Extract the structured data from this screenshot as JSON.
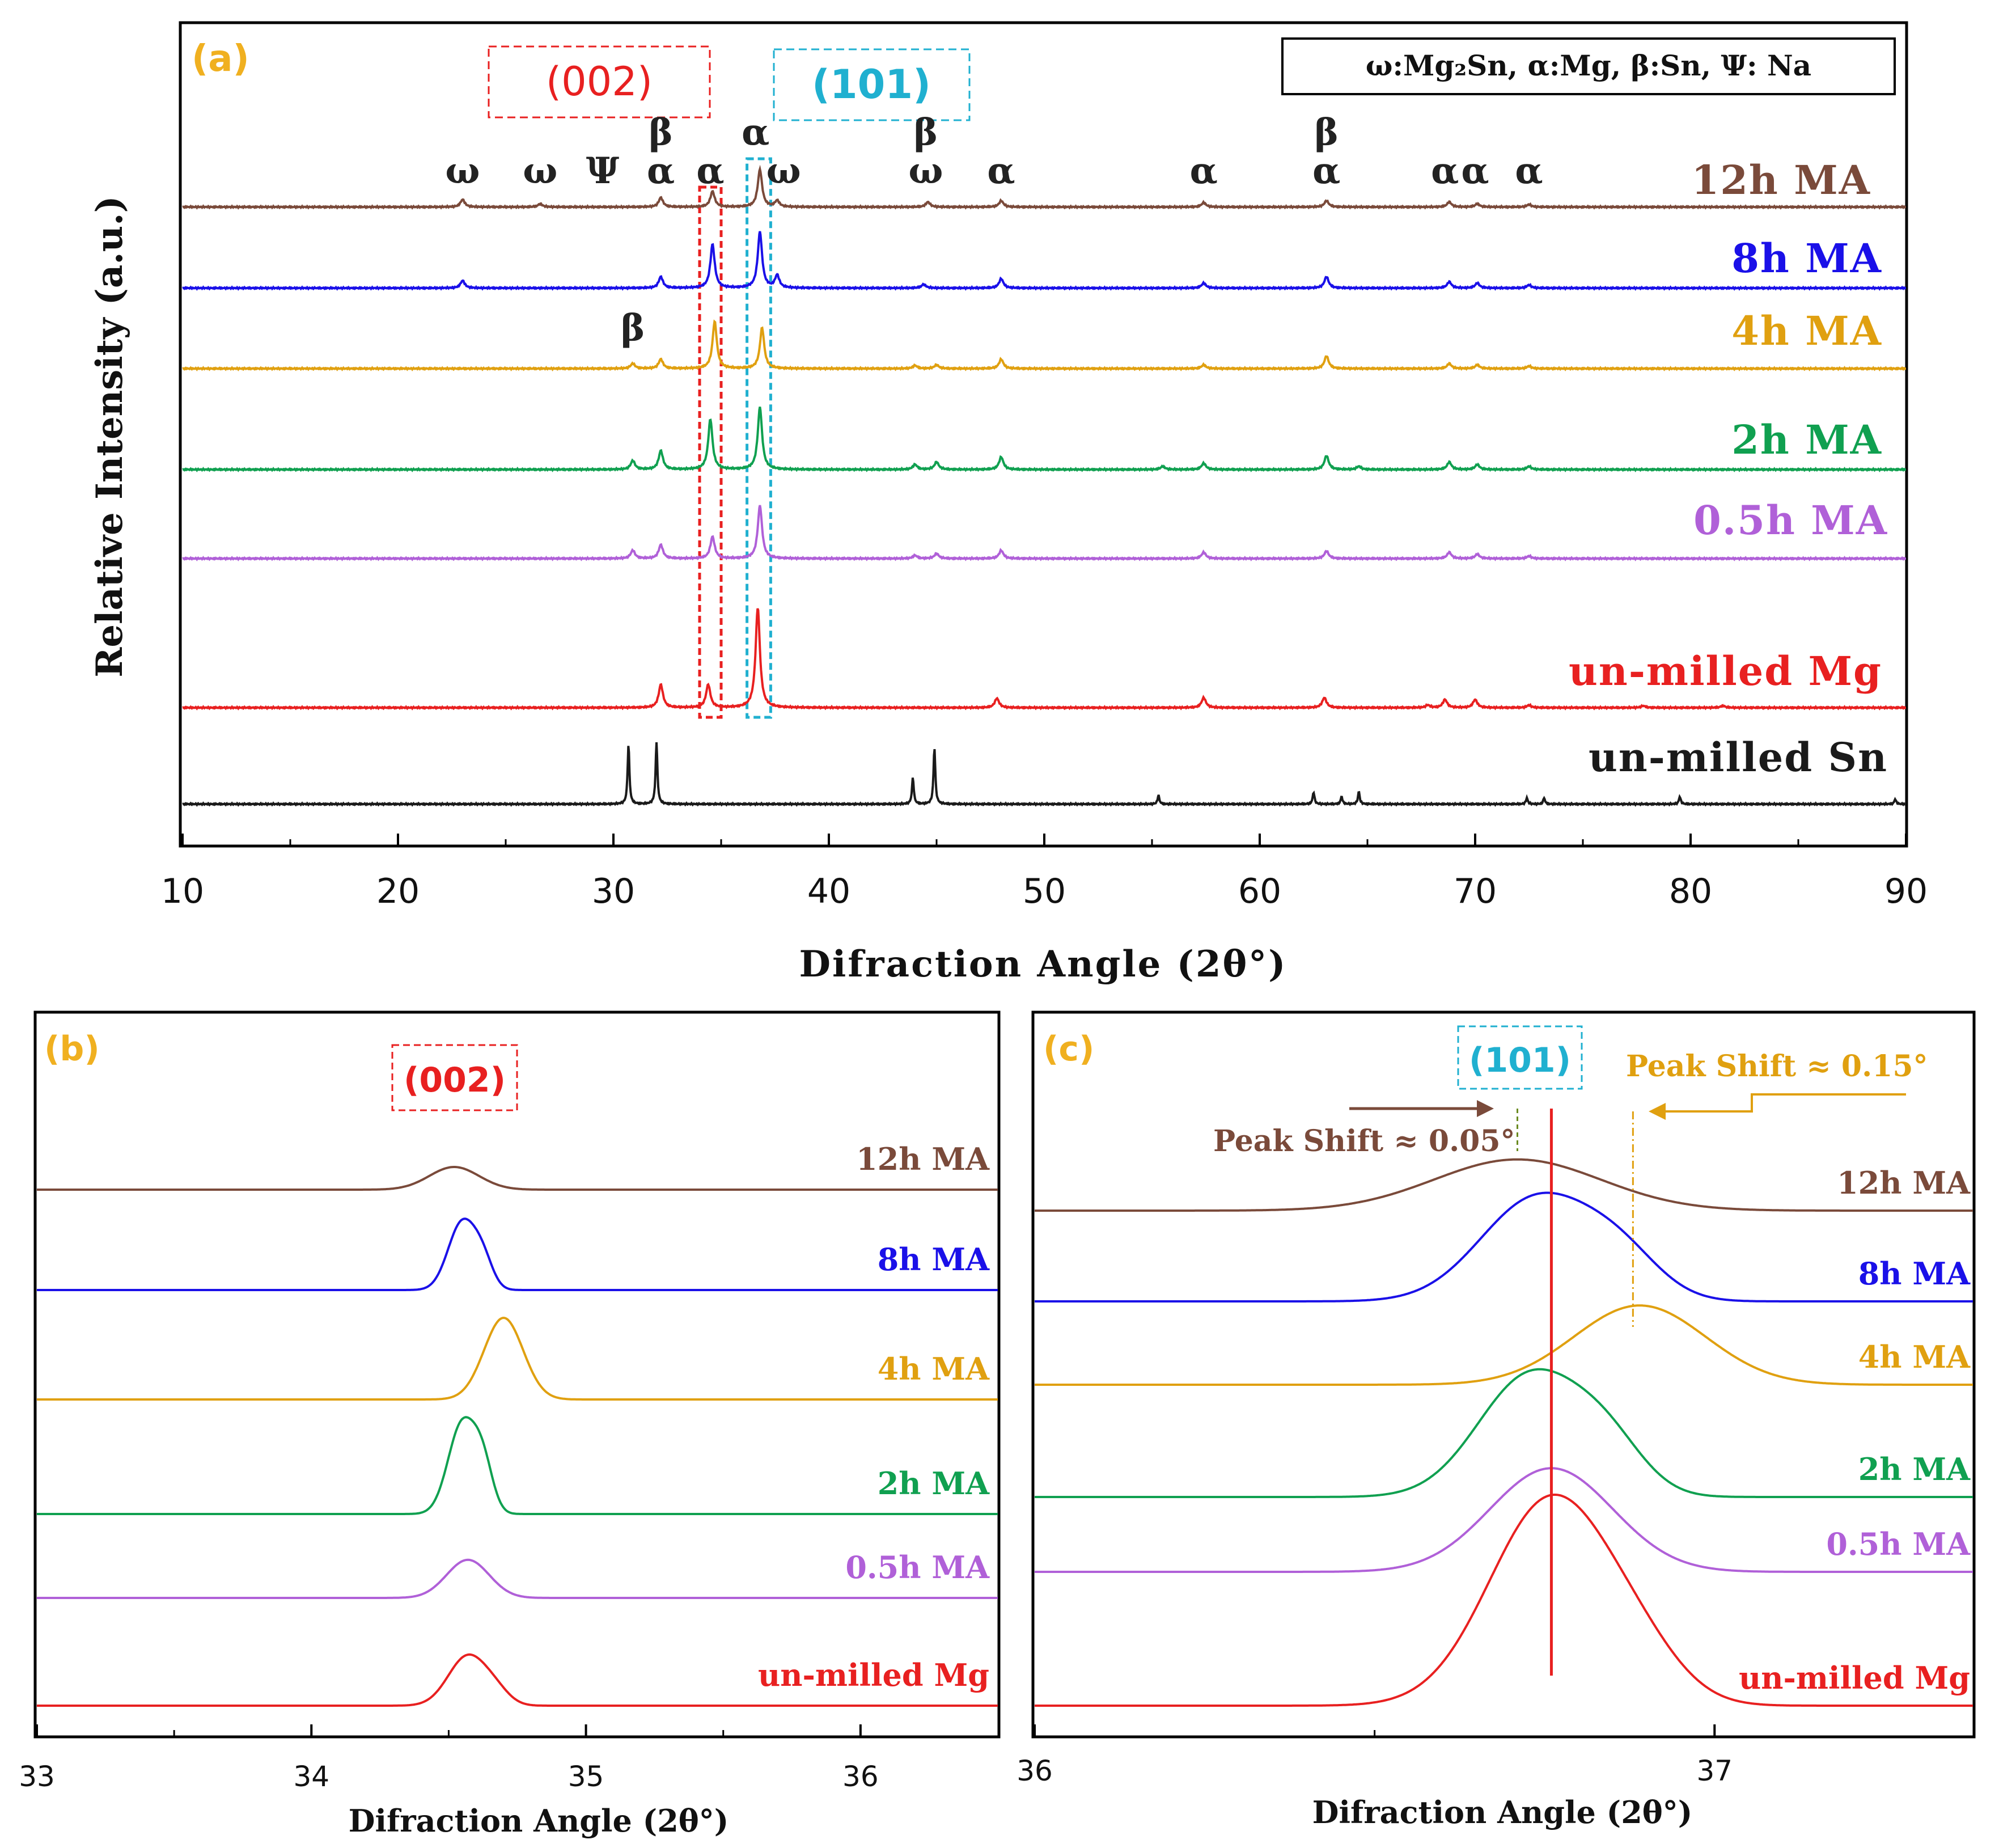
{
  "chart_data": [
    {
      "panel": "(a)",
      "type": "line",
      "title": "",
      "xlabel": "Difraction Angle (2θ°)",
      "ylabel": "Relative Intensity (a.u.)",
      "xlim": [
        10,
        90
      ],
      "xticks": [
        "10",
        "20",
        "30",
        "40",
        "50",
        "60",
        "70",
        "80",
        "90"
      ],
      "legend_box": "ω:Mg₂Sn, α:Mg, β:Sn, Ψ: Na",
      "highlight_labels": [
        "(002)",
        "(101)"
      ],
      "highlight_ranges": [
        [
          34.0,
          35.0
        ],
        [
          36.2,
          37.3
        ]
      ],
      "series": [
        {
          "name": "12h MA",
          "color": "#7a4a3a",
          "peaks": [
            [
              23.0,
              0.12
            ],
            [
              26.6,
              0.05
            ],
            [
              32.2,
              0.15
            ],
            [
              34.6,
              0.25
            ],
            [
              36.8,
              0.6
            ],
            [
              37.6,
              0.1
            ],
            [
              44.6,
              0.08
            ],
            [
              48.0,
              0.1
            ],
            [
              57.4,
              0.07
            ],
            [
              63.1,
              0.1
            ],
            [
              68.8,
              0.08
            ],
            [
              70.1,
              0.05
            ],
            [
              72.5,
              0.04
            ]
          ]
        },
        {
          "name": "8h MA",
          "color": "#1a10e8",
          "peaks": [
            [
              23.0,
              0.12
            ],
            [
              32.2,
              0.18
            ],
            [
              34.6,
              0.7
            ],
            [
              36.8,
              0.9
            ],
            [
              37.6,
              0.2
            ],
            [
              44.4,
              0.06
            ],
            [
              48.0,
              0.15
            ],
            [
              57.4,
              0.08
            ],
            [
              63.1,
              0.18
            ],
            [
              68.8,
              0.1
            ],
            [
              70.1,
              0.08
            ],
            [
              72.5,
              0.05
            ]
          ]
        },
        {
          "name": "4h MA",
          "color": "#e0a010",
          "peaks": [
            [
              30.9,
              0.08
            ],
            [
              32.2,
              0.15
            ],
            [
              34.7,
              0.75
            ],
            [
              36.9,
              0.65
            ],
            [
              44.0,
              0.05
            ],
            [
              45.0,
              0.06
            ],
            [
              48.0,
              0.15
            ],
            [
              57.4,
              0.06
            ],
            [
              63.1,
              0.2
            ],
            [
              68.8,
              0.08
            ],
            [
              70.1,
              0.06
            ],
            [
              72.5,
              0.04
            ]
          ]
        },
        {
          "name": "2h MA",
          "color": "#10a050",
          "peaks": [
            [
              30.9,
              0.14
            ],
            [
              32.2,
              0.3
            ],
            [
              34.5,
              0.8
            ],
            [
              36.8,
              1.0
            ],
            [
              44.0,
              0.08
            ],
            [
              45.0,
              0.12
            ],
            [
              48.0,
              0.2
            ],
            [
              55.5,
              0.05
            ],
            [
              57.4,
              0.1
            ],
            [
              63.1,
              0.22
            ],
            [
              64.6,
              0.05
            ],
            [
              68.8,
              0.12
            ],
            [
              70.1,
              0.08
            ],
            [
              72.5,
              0.05
            ]
          ]
        },
        {
          "name": "0.5h MA",
          "color": "#b060d8",
          "peaks": [
            [
              30.9,
              0.13
            ],
            [
              32.2,
              0.22
            ],
            [
              34.6,
              0.35
            ],
            [
              36.8,
              0.85
            ],
            [
              44.0,
              0.05
            ],
            [
              45.0,
              0.08
            ],
            [
              48.0,
              0.13
            ],
            [
              57.4,
              0.1
            ],
            [
              63.1,
              0.12
            ],
            [
              68.8,
              0.1
            ],
            [
              70.1,
              0.07
            ],
            [
              72.5,
              0.04
            ]
          ]
        },
        {
          "name": "un-milled Mg",
          "color": "#e82020",
          "peaks": [
            [
              32.2,
              0.37
            ],
            [
              34.4,
              0.37
            ],
            [
              36.7,
              1.6
            ],
            [
              47.8,
              0.15
            ],
            [
              57.4,
              0.16
            ],
            [
              63.0,
              0.16
            ],
            [
              67.8,
              0.04
            ],
            [
              68.6,
              0.13
            ],
            [
              70.0,
              0.13
            ],
            [
              72.5,
              0.04
            ],
            [
              77.8,
              0.03
            ],
            [
              81.5,
              0.03
            ]
          ]
        },
        {
          "name": "un-milled Sn",
          "color": "#1a1a1a",
          "peaks": [
            [
              30.7,
              0.95
            ],
            [
              32.0,
              1.0
            ],
            [
              43.9,
              0.42
            ],
            [
              44.9,
              0.9
            ],
            [
              55.3,
              0.14
            ],
            [
              62.5,
              0.19
            ],
            [
              63.8,
              0.12
            ],
            [
              64.6,
              0.2
            ],
            [
              72.4,
              0.1
            ],
            [
              73.2,
              0.1
            ],
            [
              79.5,
              0.12
            ],
            [
              89.5,
              0.08
            ]
          ]
        }
      ],
      "annotations": [
        {
          "text": "ω",
          "x": 23.0,
          "row": 1
        },
        {
          "text": "ω",
          "x": 26.6,
          "row": 1
        },
        {
          "text": "Ψ",
          "x": 29.5,
          "row": 1
        },
        {
          "text": "β",
          "x": 32.2,
          "row": 2
        },
        {
          "text": "α",
          "x": 32.2,
          "row": 1
        },
        {
          "text": "α",
          "x": 34.5,
          "row": 1
        },
        {
          "text": "α",
          "x": 36.6,
          "row": 2
        },
        {
          "text": "ω",
          "x": 37.9,
          "row": 1
        },
        {
          "text": "β",
          "x": 44.5,
          "row": 2
        },
        {
          "text": "ω",
          "x": 44.5,
          "row": 1
        },
        {
          "text": "α",
          "x": 48.0,
          "row": 1
        },
        {
          "text": "α",
          "x": 57.4,
          "row": 1
        },
        {
          "text": "β",
          "x": 63.1,
          "row": 2
        },
        {
          "text": "α",
          "x": 63.1,
          "row": 1
        },
        {
          "text": "α",
          "x": 68.6,
          "row": 1
        },
        {
          "text": "α",
          "x": 70.0,
          "row": 1
        },
        {
          "text": "α",
          "x": 72.5,
          "row": 1
        },
        {
          "text": "β",
          "x": 30.9,
          "row": 0
        }
      ]
    },
    {
      "panel": "(b)",
      "type": "line",
      "title": "",
      "xlabel": "Difraction Angle (2θ°)",
      "xlim": [
        33,
        36.5
      ],
      "xticks": [
        "33",
        "34",
        "35",
        "36"
      ],
      "highlight_label": "(002)",
      "series": [
        {
          "name": "12h MA",
          "color": "#7a4a3a",
          "center": 34.52,
          "height": 0.25,
          "width": 0.14,
          "shoulder": 0.0
        },
        {
          "name": "8h MA",
          "color": "#1a10e8",
          "center": 34.55,
          "height": 0.75,
          "width": 0.08,
          "shoulder": 0.35
        },
        {
          "name": "4h MA",
          "color": "#e0a010",
          "center": 34.7,
          "height": 0.9,
          "width": 0.11,
          "shoulder": 0.0
        },
        {
          "name": "2h MA",
          "color": "#10a050",
          "center": 34.55,
          "height": 1.0,
          "width": 0.08,
          "shoulder": 0.45
        },
        {
          "name": "0.5h MA",
          "color": "#b060d8",
          "center": 34.57,
          "height": 0.42,
          "width": 0.12,
          "shoulder": 0.0
        },
        {
          "name": "un-milled Mg",
          "color": "#e82020",
          "center": 34.57,
          "height": 0.55,
          "width": 0.11,
          "shoulder": 0.2
        }
      ]
    },
    {
      "panel": "(c)",
      "type": "line",
      "title": "",
      "xlabel": "Difraction Angle (2θ°)",
      "xlim": [
        36.0,
        37.38
      ],
      "xticks": [
        "36",
        "37"
      ],
      "highlight_label": "(101)",
      "reference_x": 36.76,
      "shift_annotations": [
        {
          "text": "Peak Shift ≈ 0.05°",
          "x": 36.71,
          "color": "#7a4a3a",
          "side": "left"
        },
        {
          "text": "Peak Shift ≈ 0.15°",
          "x": 36.88,
          "color": "#e0a010",
          "side": "right"
        }
      ],
      "series": [
        {
          "name": "12h MA",
          "color": "#7a4a3a",
          "center": 36.71,
          "height": 0.42,
          "width": 0.19,
          "shoulder": 0.0
        },
        {
          "name": "8h MA",
          "color": "#1a10e8",
          "center": 36.74,
          "height": 0.85,
          "width": 0.13,
          "shoulder": 0.35
        },
        {
          "name": "4h MA",
          "color": "#e0a010",
          "center": 36.89,
          "height": 0.65,
          "width": 0.15,
          "shoulder": 0.0
        },
        {
          "name": "2h MA",
          "color": "#10a050",
          "center": 36.73,
          "height": 1.0,
          "width": 0.12,
          "shoulder": 0.35
        },
        {
          "name": "0.5h MA",
          "color": "#b060d8",
          "center": 36.76,
          "height": 0.85,
          "width": 0.14,
          "shoulder": 0.0
        },
        {
          "name": "un-milled Mg",
          "color": "#e82020",
          "center": 36.76,
          "height": 1.7,
          "width": 0.14,
          "shoulder": 0.15
        }
      ]
    }
  ]
}
